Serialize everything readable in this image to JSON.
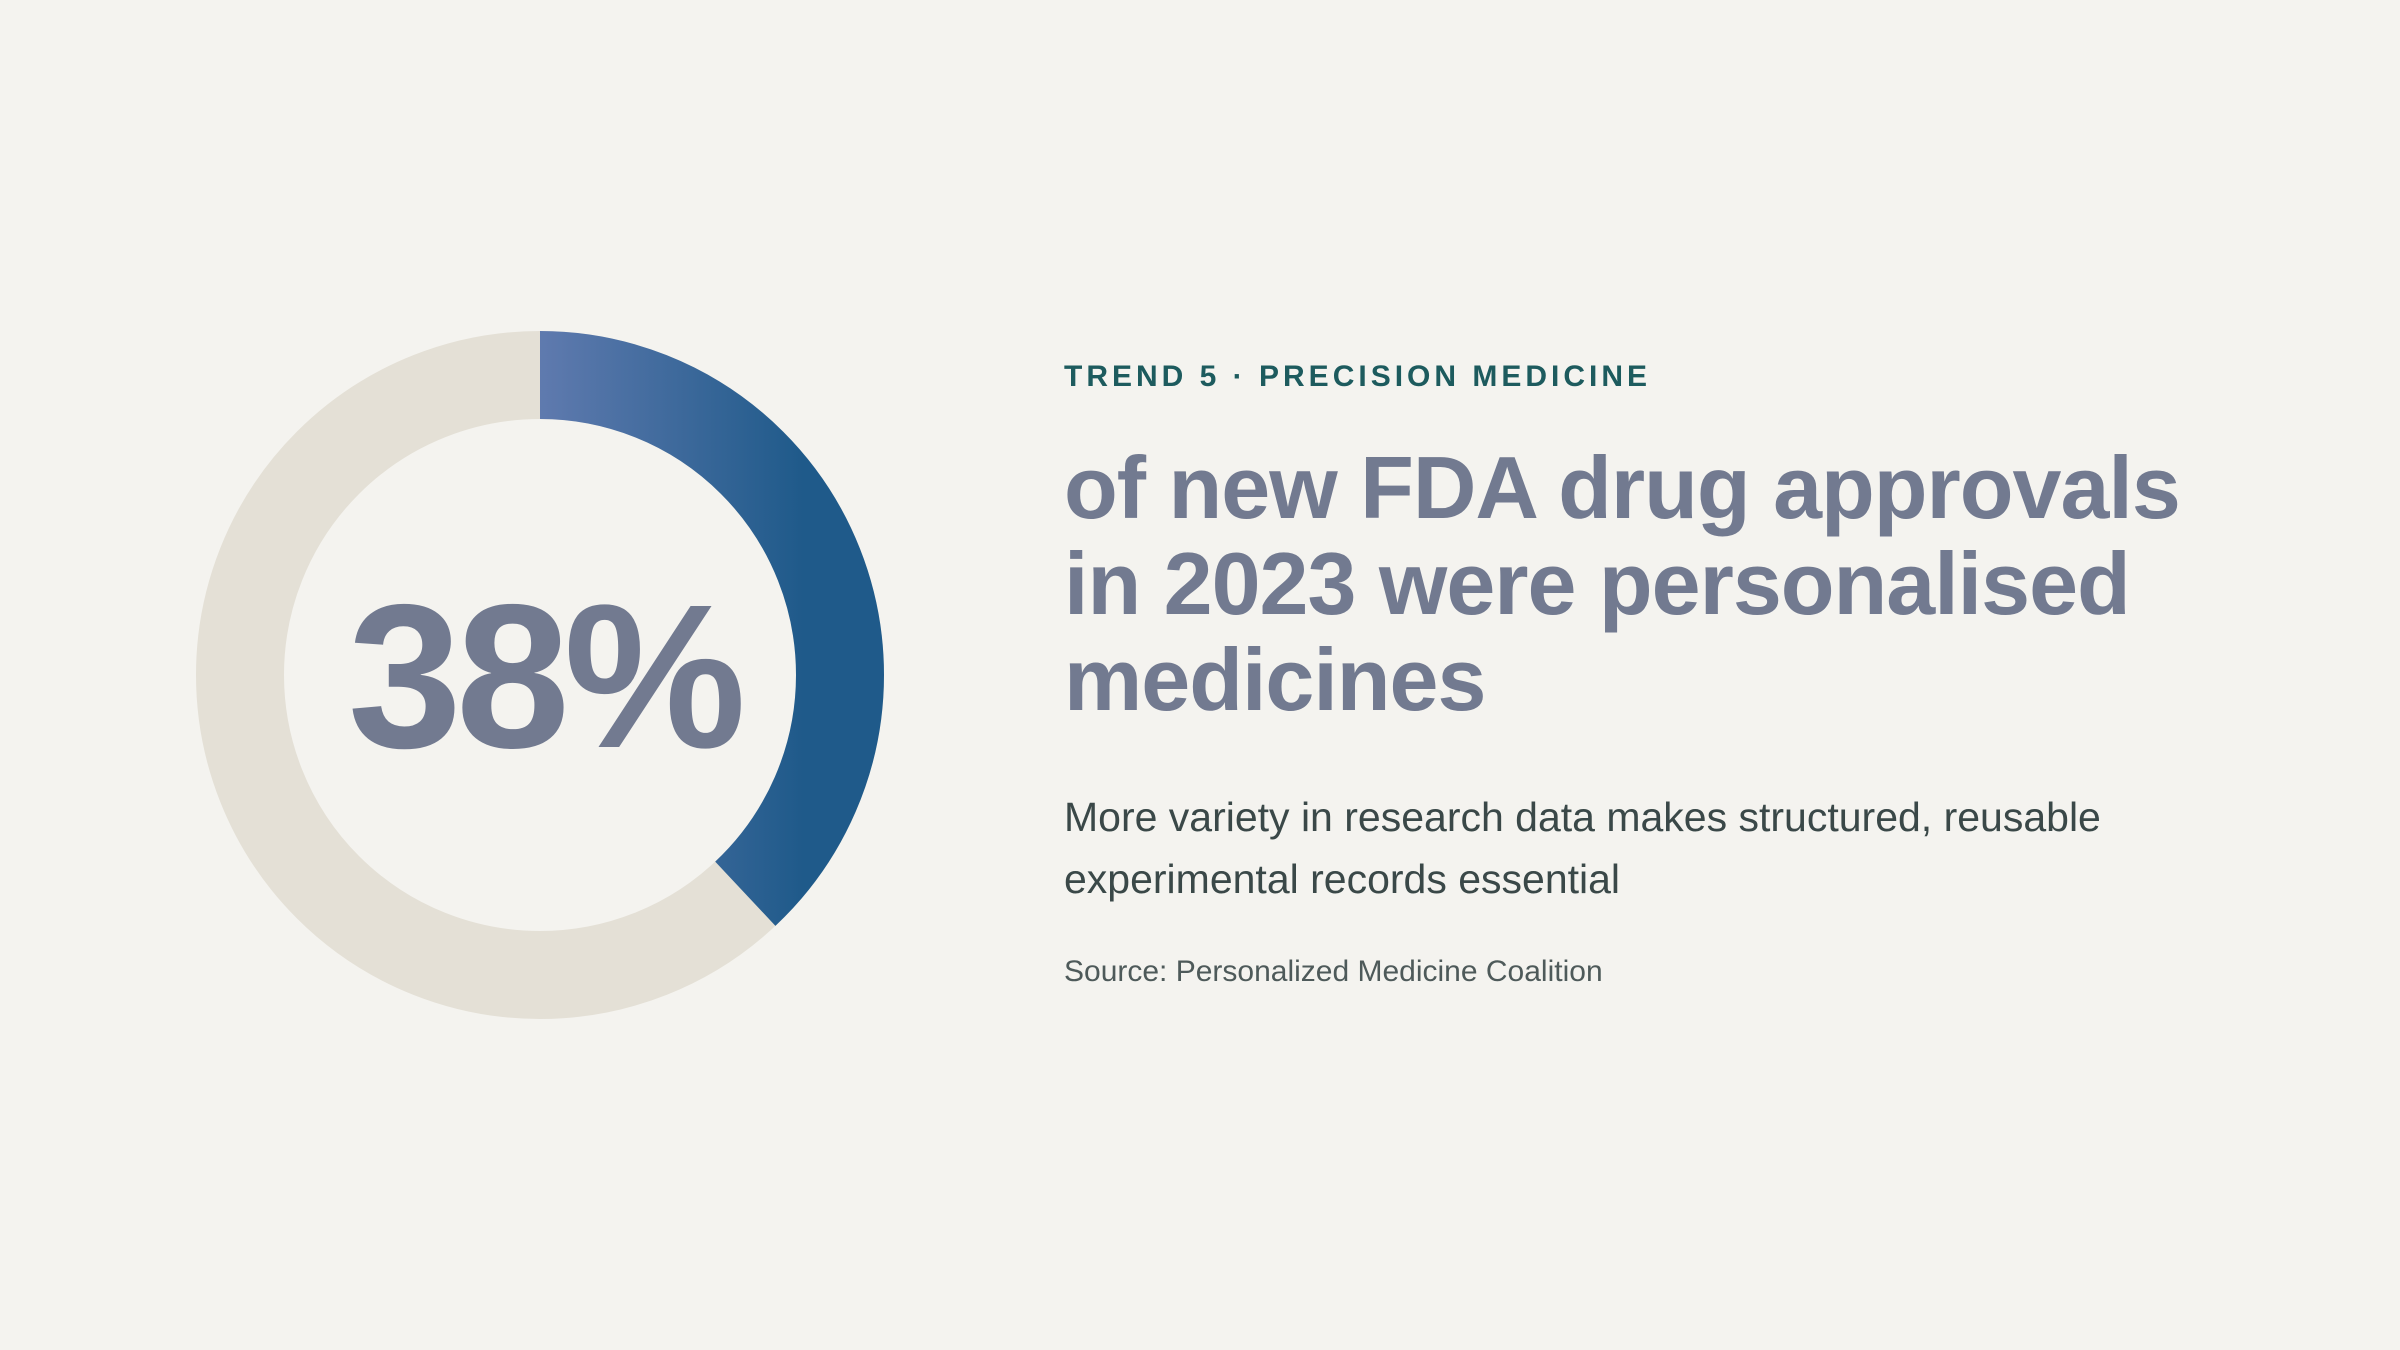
{
  "chart_data": {
    "type": "donut",
    "values": [
      38
    ],
    "value_labels": [
      "38%"
    ],
    "colors": [
      "#b3a4de",
      "#1f5a8a"
    ],
    "track_color": "#e4e0d6",
    "kicker": "TREND 5 · PRECISION MEDICINE",
    "title": "of new FDA drug approvals in 2023 were personalised medicines",
    "subtitle": "More variety in research data makes structured, reusable experimental records essential",
    "source": "Source: Personalized Medicine Coalition"
  }
}
